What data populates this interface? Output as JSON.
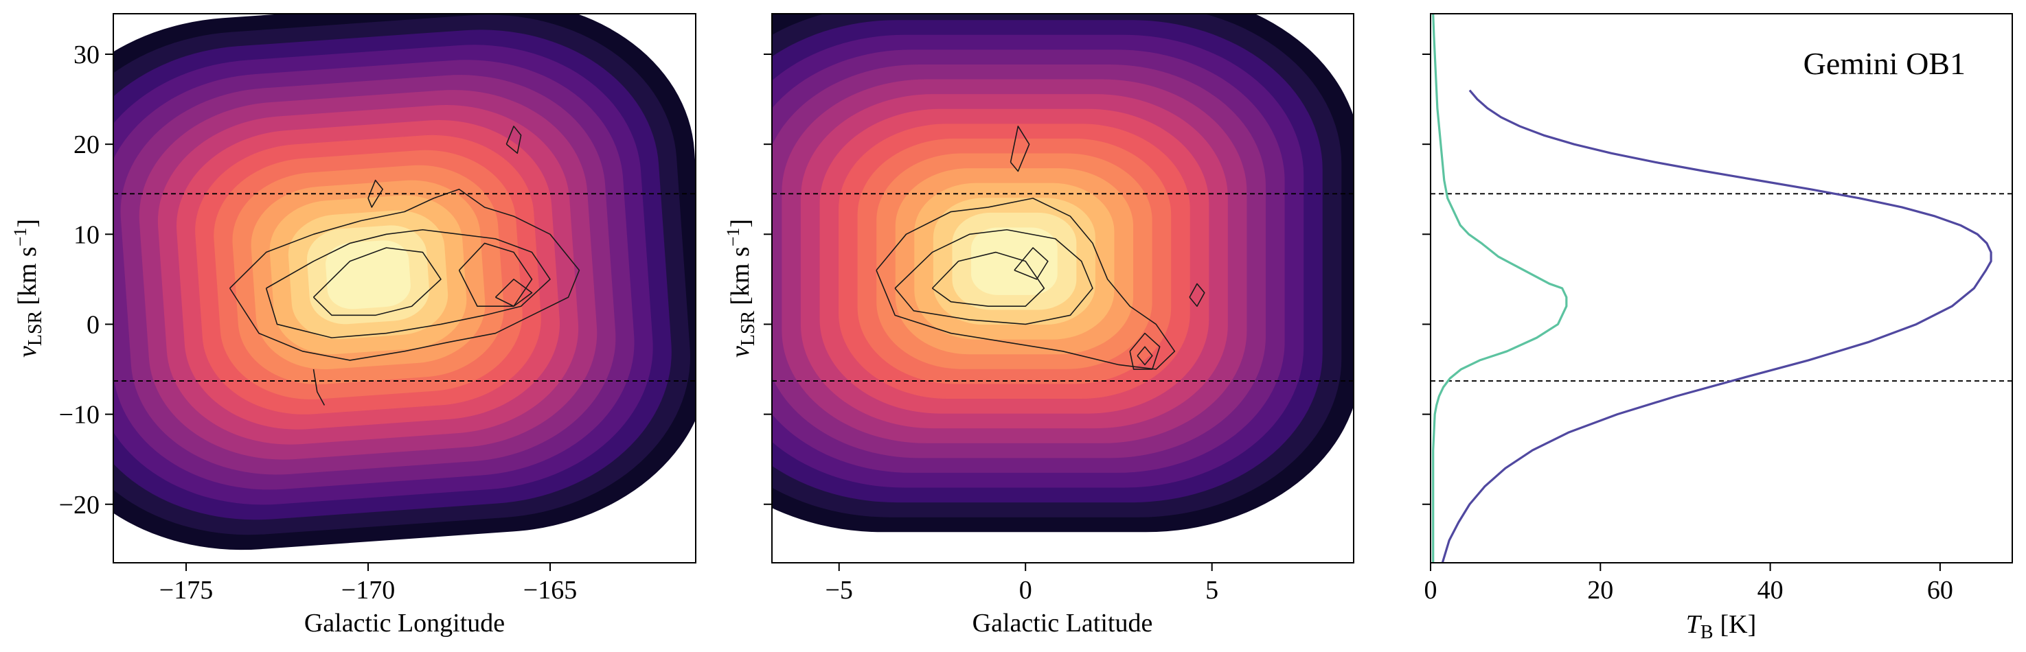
{
  "figure": {
    "colors": {
      "magma": [
        "#0d0829",
        "#1e1043",
        "#3b0f70",
        "#57157e",
        "#721f81",
        "#8c2981",
        "#a8327d",
        "#c43c75",
        "#dd4a69",
        "#ed5a5f",
        "#f4705c",
        "#f9875d",
        "#fca063",
        "#feb86e",
        "#fed083",
        "#fde6a1",
        "#fcf4b8"
      ],
      "hi_line": "#5048a0",
      "co_line": "#5cc3a0",
      "contour_line": "#1a1a1a",
      "ref_line": "#000000"
    }
  },
  "chart_data": [
    {
      "type": "heatmap",
      "xlabel": "Galactic Longitude",
      "ylabel_main": "v",
      "ylabel_sub": "LSR",
      "ylabel_units": "[km s",
      "ylabel_sup": "−1",
      "ylabel_close": "]",
      "xlim": [
        -177,
        -161
      ],
      "ylim": [
        -26.5,
        34.5
      ],
      "xticks": [
        -175,
        -170,
        -165
      ],
      "xtick_labels": [
        "−175",
        "−170",
        "−165"
      ],
      "yticks": [
        -20,
        -10,
        0,
        10,
        20,
        30
      ],
      "ytick_labels": [
        "−20",
        "−10",
        "0",
        "10",
        "20",
        "30"
      ],
      "hlines": [
        14.5,
        -6.3
      ],
      "filled_contours": {
        "center": [
          -170,
          5.5
        ],
        "x_extent": [
          -177,
          -161
        ],
        "y_extent": [
          -23.5,
          34.5
        ],
        "levels": 17
      },
      "line_contours": [
        {
          "x": [
            -173.8,
            -172.8,
            -171.5,
            -170.2,
            -169.0,
            -168.2,
            -167.5,
            -166.8,
            -166.0,
            -165.0,
            -164.2,
            -164.5,
            -165.5,
            -166.5,
            -167.8,
            -169.0,
            -170.5,
            -171.8,
            -173.0,
            -173.8
          ],
          "y": [
            4,
            8,
            10,
            11.5,
            12.5,
            14,
            15,
            13,
            12,
            10,
            6,
            3,
            1,
            -1,
            -2,
            -3,
            -4,
            -3,
            -1,
            4
          ]
        },
        {
          "x": [
            -172.8,
            -171.5,
            -170.5,
            -169.5,
            -168.5,
            -167.5,
            -166.5,
            -165.5,
            -165.0,
            -165.8,
            -166.8,
            -168.0,
            -169.5,
            -171.0,
            -172.5,
            -172.8
          ],
          "y": [
            4,
            7,
            9,
            10,
            10.5,
            10,
            9.5,
            8,
            5,
            2,
            1,
            0,
            -1,
            -1.5,
            0,
            4
          ]
        },
        {
          "x": [
            -171.5,
            -170.5,
            -169.5,
            -168.5,
            -168.0,
            -168.8,
            -169.8,
            -171.0,
            -171.5
          ],
          "y": [
            3,
            7,
            8.5,
            8,
            5,
            2,
            1,
            1,
            3
          ]
        },
        {
          "x": [
            -167.5,
            -166.8,
            -166.0,
            -165.5,
            -166.0,
            -167.0,
            -167.5
          ],
          "y": [
            6,
            9,
            8,
            5,
            2,
            2,
            6
          ]
        },
        {
          "x": [
            -166.5,
            -166.0,
            -165.5,
            -166.0,
            -166.5
          ],
          "y": [
            3,
            5,
            3.5,
            2,
            3
          ]
        },
        {
          "x": [
            -166.2,
            -166.0,
            -165.8,
            -165.9,
            -166.2
          ],
          "y": [
            20,
            22,
            21,
            19,
            20
          ]
        },
        {
          "x": [
            -170.0,
            -169.8,
            -169.6,
            -169.9,
            -170.0
          ],
          "y": [
            14,
            16,
            15,
            13,
            14
          ]
        },
        {
          "x": [
            -171.5,
            -171.4,
            -171.2
          ],
          "y": [
            -5,
            -7.5,
            -9
          ]
        }
      ]
    },
    {
      "type": "heatmap",
      "xlabel": "Galactic Latitude",
      "ylabel_main": "v",
      "ylabel_sub": "LSR",
      "ylabel_units": "[km s",
      "ylabel_sup": "−1",
      "ylabel_close": "]",
      "xlim": [
        -6.8,
        8.8
      ],
      "ylim": [
        -26.5,
        34.5
      ],
      "xticks": [
        -5,
        0,
        5
      ],
      "xtick_labels": [
        "−5",
        "0",
        "5"
      ],
      "yticks": [
        -20,
        -10,
        0,
        10,
        20,
        30
      ],
      "ytick_labels": [
        "",
        "",
        "",
        "",
        "",
        ""
      ],
      "hlines": [
        14.5,
        -6.3
      ],
      "filled_contours": {
        "center": [
          -0.3,
          7.0
        ],
        "x_extent": [
          -6.8,
          8.8
        ],
        "y_extent": [
          -22.5,
          34.5
        ],
        "levels": 17
      },
      "line_contours": [
        {
          "x": [
            -4.0,
            -3.2,
            -2.0,
            -1.0,
            0.2,
            1.2,
            1.8,
            2.2,
            2.8,
            3.5,
            4.0,
            3.5,
            2.5,
            1.0,
            -0.5,
            -2.0,
            -3.5,
            -4.0
          ],
          "y": [
            6,
            10,
            12.5,
            13,
            14,
            12,
            9,
            5,
            2,
            0,
            -3,
            -5,
            -4.5,
            -3,
            -2,
            -1,
            1,
            6
          ]
        },
        {
          "x": [
            -3.5,
            -2.5,
            -1.5,
            -0.5,
            0.8,
            1.5,
            1.8,
            1.2,
            0.0,
            -1.5,
            -3.0,
            -3.5
          ],
          "y": [
            4,
            8,
            10,
            10.5,
            9.5,
            7,
            4,
            1,
            0,
            0.5,
            1.5,
            4
          ]
        },
        {
          "x": [
            -2.5,
            -1.8,
            -0.8,
            0.0,
            0.5,
            0.0,
            -1.0,
            -2.0,
            -2.5
          ],
          "y": [
            4,
            7,
            8,
            7,
            4,
            2,
            2,
            2.5,
            4
          ]
        },
        {
          "x": [
            -0.3,
            0.2,
            0.6,
            0.3,
            -0.3
          ],
          "y": [
            6,
            8.5,
            7,
            5,
            6
          ]
        },
        {
          "x": [
            2.8,
            3.2,
            3.6,
            3.4,
            2.9,
            2.8
          ],
          "y": [
            -3,
            -1,
            -2.5,
            -5,
            -5,
            -3
          ]
        },
        {
          "x": [
            3.0,
            3.2,
            3.4,
            3.2,
            3.0
          ],
          "y": [
            -3.5,
            -2.5,
            -3.5,
            -4.5,
            -3.5
          ]
        },
        {
          "x": [
            -0.4,
            -0.2,
            0.1,
            -0.2,
            -0.4
          ],
          "y": [
            18,
            22,
            20,
            17,
            18
          ]
        },
        {
          "x": [
            4.4,
            4.6,
            4.8,
            4.6,
            4.4
          ],
          "y": [
            3,
            4.5,
            3.5,
            2,
            3
          ]
        }
      ]
    },
    {
      "type": "line",
      "xlabel_main": "T",
      "xlabel_sub": "B",
      "xlabel_units": "[K]",
      "xlim": [
        0,
        68.5
      ],
      "ylim": [
        -26.5,
        34.5
      ],
      "xticks": [
        0,
        20,
        40,
        60
      ],
      "xtick_labels": [
        "0",
        "20",
        "40",
        "60"
      ],
      "yticks": [
        -20,
        -10,
        0,
        10,
        20,
        30
      ],
      "ytick_labels": [
        "",
        "",
        "",
        "",
        "",
        ""
      ],
      "hlines": [
        14.5,
        -6.3
      ],
      "annotation": "Gemini OB1",
      "series": [
        {
          "color_key": "hi_line",
          "x": [
            1.4,
            2.2,
            3.3,
            4.6,
            6.4,
            8.8,
            12.0,
            16.3,
            22.0,
            28.9,
            36.6,
            44.5,
            51.5,
            57.2,
            61.4,
            64.0,
            65.4,
            66.0,
            66.0,
            65.5,
            64.4,
            62.4,
            59.4,
            55.5,
            50.5,
            44.7,
            38.5,
            32.3,
            26.5,
            21.3,
            16.9,
            13.3,
            10.5,
            8.3,
            6.7,
            5.5,
            4.6
          ],
          "y": [
            -26.5,
            -24,
            -22,
            -20,
            -18,
            -16,
            -14,
            -12,
            -10,
            -8,
            -6,
            -4,
            -2,
            0,
            2,
            4,
            6,
            7,
            8,
            9,
            10,
            11,
            12,
            13,
            14,
            15,
            16,
            17,
            18,
            19,
            20,
            21,
            22,
            23,
            24,
            25,
            26
          ]
        },
        {
          "color_key": "co_line",
          "x": [
            0.3,
            0.3,
            0.4,
            0.5,
            0.7,
            1.0,
            1.5,
            2.3,
            3.6,
            5.8,
            9.0,
            12.5,
            15.0,
            16.0,
            16.0,
            15.5,
            14.0,
            12.0,
            10.0,
            8.0,
            6.0,
            4.5,
            3.5,
            3.0,
            2.5,
            2.0,
            1.8,
            1.6,
            1.5,
            1.4,
            1.3,
            1.2,
            1.1,
            1.0,
            0.9,
            0.8,
            0.7,
            0.6,
            0.5,
            0.4,
            0.3
          ],
          "y": [
            -26.5,
            -14,
            -12,
            -10,
            -9,
            -8,
            -7,
            -6,
            -5,
            -4,
            -3,
            -1.5,
            0,
            2,
            3,
            4,
            4.5,
            5.5,
            6.5,
            7.5,
            9,
            10,
            11,
            12,
            13,
            14,
            15,
            16,
            17,
            18,
            19,
            20,
            21,
            22,
            23,
            24,
            26,
            28,
            30,
            32,
            34.5
          ]
        }
      ]
    }
  ]
}
